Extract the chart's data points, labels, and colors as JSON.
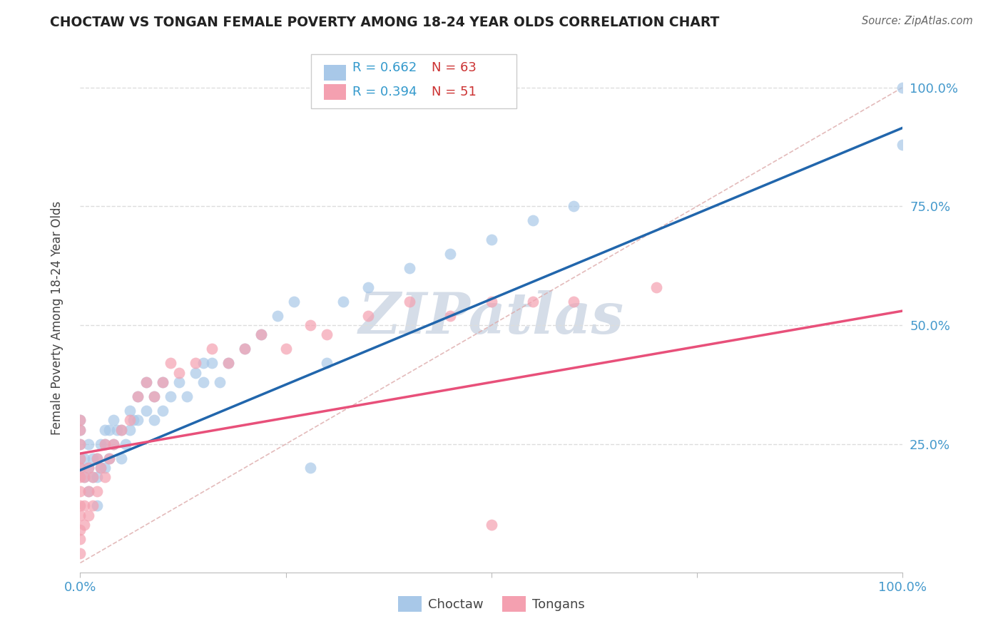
{
  "title": "CHOCTAW VS TONGAN FEMALE POVERTY AMONG 18-24 YEAR OLDS CORRELATION CHART",
  "source": "Source: ZipAtlas.com",
  "ylabel": "Female Poverty Among 18-24 Year Olds",
  "xlim": [
    0,
    1.0
  ],
  "ylim": [
    0,
    1.05
  ],
  "choctaw_color": "#a8c8e8",
  "tongan_color": "#f4a0b0",
  "choctaw_line_color": "#2166ac",
  "tongan_line_color": "#e8507a",
  "diag_color": "#ccaaaa",
  "choctaw_r": 0.662,
  "choctaw_n": 63,
  "tongan_r": 0.394,
  "tongan_n": 51,
  "legend_r_color": "#3399cc",
  "legend_n_color": "#cc3333",
  "watermark_color": "#d5dde8",
  "grid_color": "#dddddd",
  "tick_label_color": "#4499cc",
  "choctaw_x": [
    0.0,
    0.0,
    0.0,
    0.0,
    0.0,
    0.005,
    0.005,
    0.01,
    0.01,
    0.01,
    0.015,
    0.015,
    0.02,
    0.02,
    0.02,
    0.025,
    0.025,
    0.03,
    0.03,
    0.03,
    0.035,
    0.035,
    0.04,
    0.04,
    0.045,
    0.05,
    0.05,
    0.055,
    0.06,
    0.06,
    0.065,
    0.07,
    0.07,
    0.08,
    0.08,
    0.09,
    0.09,
    0.1,
    0.1,
    0.11,
    0.12,
    0.13,
    0.14,
    0.15,
    0.15,
    0.16,
    0.17,
    0.18,
    0.2,
    0.22,
    0.24,
    0.26,
    0.28,
    0.3,
    0.32,
    0.35,
    0.4,
    0.45,
    0.5,
    0.55,
    0.6,
    1.0,
    1.0
  ],
  "choctaw_y": [
    0.2,
    0.22,
    0.25,
    0.28,
    0.3,
    0.18,
    0.22,
    0.15,
    0.2,
    0.25,
    0.18,
    0.22,
    0.12,
    0.18,
    0.22,
    0.2,
    0.25,
    0.2,
    0.25,
    0.28,
    0.22,
    0.28,
    0.25,
    0.3,
    0.28,
    0.22,
    0.28,
    0.25,
    0.28,
    0.32,
    0.3,
    0.3,
    0.35,
    0.32,
    0.38,
    0.3,
    0.35,
    0.32,
    0.38,
    0.35,
    0.38,
    0.35,
    0.4,
    0.38,
    0.42,
    0.42,
    0.38,
    0.42,
    0.45,
    0.48,
    0.52,
    0.55,
    0.2,
    0.42,
    0.55,
    0.58,
    0.62,
    0.65,
    0.68,
    0.72,
    0.75,
    1.0,
    0.88
  ],
  "tongan_x": [
    0.0,
    0.0,
    0.0,
    0.0,
    0.0,
    0.0,
    0.0,
    0.0,
    0.0,
    0.0,
    0.0,
    0.0,
    0.005,
    0.005,
    0.005,
    0.01,
    0.01,
    0.01,
    0.015,
    0.015,
    0.02,
    0.02,
    0.025,
    0.03,
    0.03,
    0.035,
    0.04,
    0.05,
    0.06,
    0.07,
    0.08,
    0.09,
    0.1,
    0.11,
    0.12,
    0.14,
    0.16,
    0.18,
    0.2,
    0.22,
    0.25,
    0.28,
    0.3,
    0.35,
    0.4,
    0.45,
    0.5,
    0.55,
    0.6,
    0.7,
    0.5
  ],
  "tongan_y": [
    0.02,
    0.05,
    0.07,
    0.1,
    0.12,
    0.15,
    0.18,
    0.2,
    0.22,
    0.25,
    0.28,
    0.3,
    0.08,
    0.12,
    0.18,
    0.1,
    0.15,
    0.2,
    0.12,
    0.18,
    0.15,
    0.22,
    0.2,
    0.18,
    0.25,
    0.22,
    0.25,
    0.28,
    0.3,
    0.35,
    0.38,
    0.35,
    0.38,
    0.42,
    0.4,
    0.42,
    0.45,
    0.42,
    0.45,
    0.48,
    0.45,
    0.5,
    0.48,
    0.52,
    0.55,
    0.52,
    0.55,
    0.55,
    0.55,
    0.58,
    0.08
  ]
}
